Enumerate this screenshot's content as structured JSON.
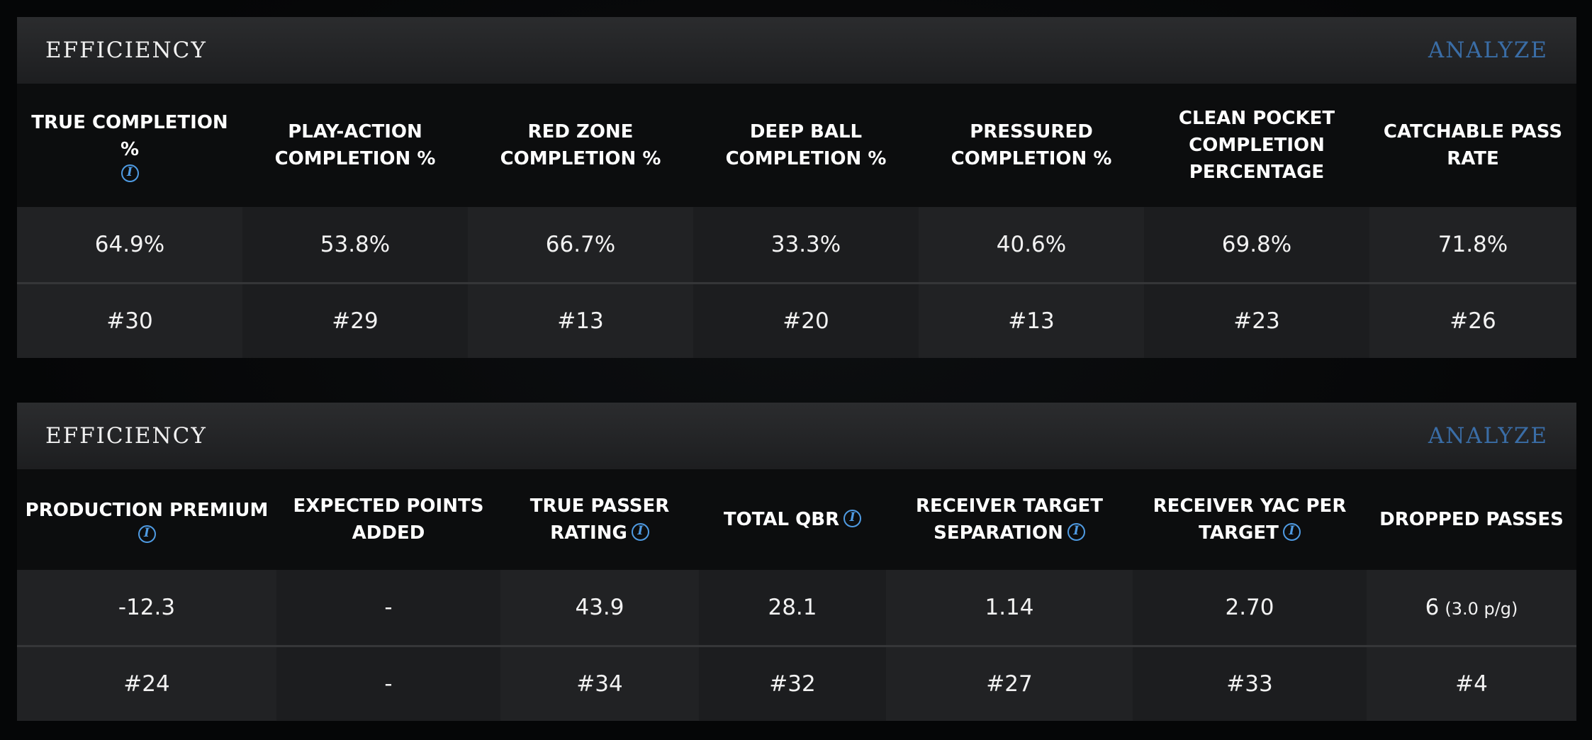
{
  "panels": [
    {
      "title": "EFFICIENCY",
      "analyze_label": "ANALYZE",
      "columns": [
        {
          "label": "TRUE COMPLETION %",
          "value": "64.9%",
          "rank": "#30"
        },
        {
          "label": "PLAY-ACTION COMPLETION %",
          "value": "53.8%",
          "rank": "#29"
        },
        {
          "label": "RED ZONE COMPLETION %",
          "value": "66.7%",
          "rank": "#13"
        },
        {
          "label": "DEEP BALL COMPLETION %",
          "value": "33.3%",
          "rank": "#20"
        },
        {
          "label": "PRESSURED COMPLETION %",
          "value": "40.6%",
          "rank": "#13"
        },
        {
          "label": "CLEAN POCKET COMPLETION PERCENTAGE",
          "value": "69.8%",
          "rank": "#23"
        },
        {
          "label": "CATCHABLE PASS RATE",
          "value": "71.8%",
          "rank": "#26"
        }
      ]
    },
    {
      "title": "EFFICIENCY",
      "analyze_label": "ANALYZE",
      "columns": [
        {
          "label": "PRODUCTION PREMIUM",
          "value": "-12.3",
          "rank": "#24"
        },
        {
          "label": "EXPECTED POINTS ADDED",
          "value": "-",
          "rank": "-"
        },
        {
          "label": "TRUE PASSER RATING",
          "value": "43.9",
          "rank": "#34"
        },
        {
          "label": "TOTAL QBR",
          "value": "28.1",
          "rank": "#32"
        },
        {
          "label": "RECEIVER TARGET SEPARATION",
          "value": "1.14",
          "rank": "#27"
        },
        {
          "label": "RECEIVER YAC PER TARGET",
          "value": "2.70",
          "rank": "#33"
        },
        {
          "label": "DROPPED PASSES",
          "value": "6",
          "value_note": "(3.0 p/g)",
          "rank": "#4"
        }
      ]
    }
  ],
  "info_icon_glyph": "i",
  "colors": {
    "accent_link": "#3a6da6",
    "info_icon": "#4f9be3"
  }
}
